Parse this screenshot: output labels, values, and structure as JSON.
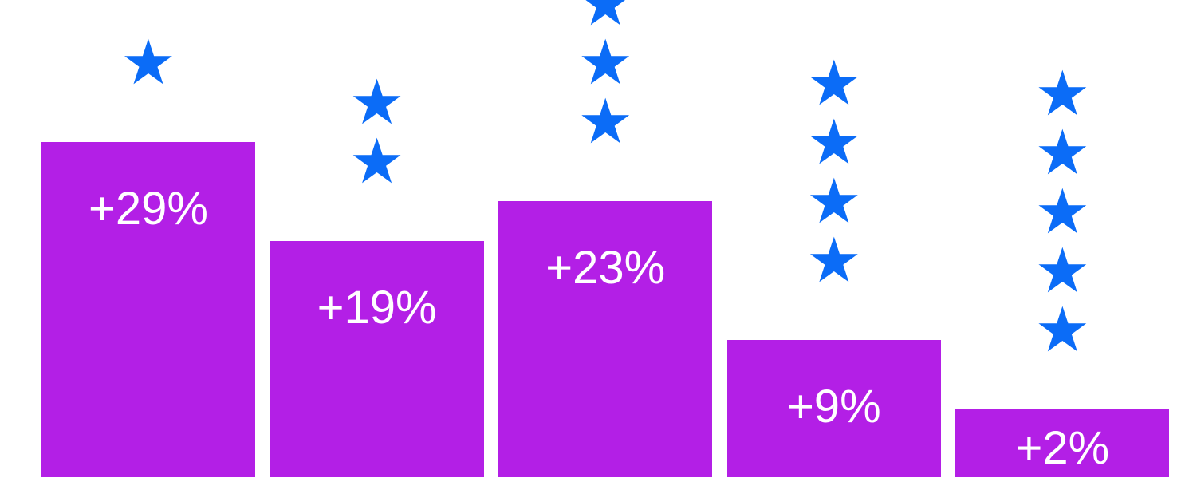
{
  "chart_data": {
    "type": "bar",
    "categories": [
      "★",
      "★★",
      "★★★",
      "★★★★",
      "★★★★★"
    ],
    "values": [
      29,
      19,
      23,
      9,
      2
    ],
    "value_labels": [
      "+29%",
      "+19%",
      "+23%",
      "+9%",
      "+2%"
    ],
    "color": "#b31fe6"
  }
}
